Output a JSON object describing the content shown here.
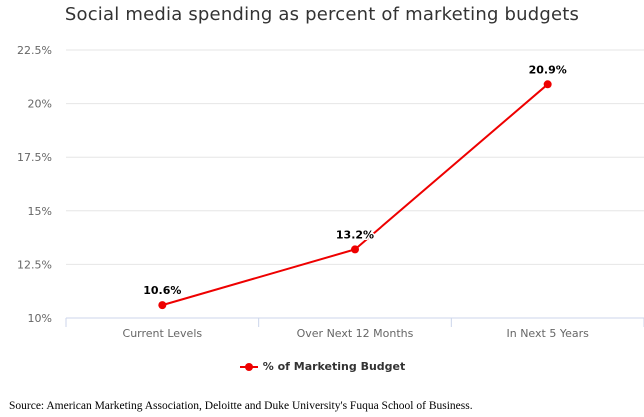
{
  "chart_data": {
    "type": "line",
    "title": "Social media spending as percent of marketing budgets",
    "categories": [
      "Current Levels",
      "Over Next 12 Months",
      "In Next 5 Years"
    ],
    "series": [
      {
        "name": "% of Marketing Budget",
        "values": [
          10.6,
          13.2,
          20.9
        ],
        "labels": [
          "10.6%",
          "13.2%",
          "20.9%"
        ],
        "color": "#ee0000"
      }
    ],
    "y_ticks": [
      10,
      12.5,
      15,
      17.5,
      20,
      22.5
    ],
    "y_tick_labels": [
      "10%",
      "12.5%",
      "15%",
      "17.5%",
      "20%",
      "22.5%"
    ],
    "ylim": [
      10,
      22.5
    ],
    "grid": true,
    "legend_position": "bottom-center"
  },
  "source_note": "Source: American Marketing Association, Deloitte and Duke University's Fuqua School of Business."
}
